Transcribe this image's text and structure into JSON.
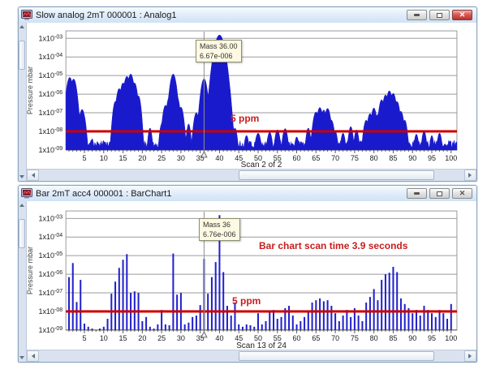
{
  "windows": [
    {
      "title": "Slow analog 2mT 000001 : Analog1",
      "active": true,
      "buttons": {
        "minimize": "minimize",
        "maximize": "maximize",
        "close": "close"
      }
    },
    {
      "title": "Bar 2mT acc4 000001 : BarChart1",
      "active": false,
      "buttons": {
        "minimize": "minimize",
        "maximize": "maximize",
        "close": "close"
      }
    }
  ],
  "icons": {
    "titlebar": "chart-window-icon",
    "minimize": "minimize-icon",
    "maximize": "maximize-icon",
    "close": "close-icon",
    "scroll_up": "triangle-up-icon",
    "scroll_down": "triangle-down-icon",
    "scroll_left": "triangle-left-icon",
    "scroll_right": "triangle-right-icon"
  },
  "chart_data": [
    {
      "type": "area",
      "title": "Slow analog 2mT 000001 : Analog1",
      "ylabel": "Pressure mbar",
      "xlabel": "Scan 2 of 2",
      "xlim": [
        0.2,
        101.5
      ],
      "ylim": [
        1e-09,
        0.0025
      ],
      "grid": "horizontal",
      "x_tick_step": 5,
      "x_ticks": [
        5,
        10,
        15,
        20,
        25,
        30,
        35,
        40,
        45,
        50,
        55,
        60,
        65,
        70,
        75,
        80,
        85,
        90,
        95,
        100
      ],
      "y_tick_labels": [
        "1x10-03",
        "1x10-04",
        "1x10-05",
        "1x10-06",
        "1x10-07",
        "1x10-08",
        "1x10-09"
      ],
      "trace_color": "#1a1acd",
      "threshold": {
        "value": 1e-08,
        "label": "5 ppm",
        "color": "#cc0000"
      },
      "cursor": {
        "mass": 36,
        "tooltip": [
          "Mass 36.00",
          "6.67e-006"
        ]
      },
      "noise_floor": 1.3e-09,
      "peaks": [
        [
          1.2,
          8e-06,
          0.5
        ],
        [
          2.2,
          6.5e-06,
          0.5
        ],
        [
          3.1,
          3e-07,
          0.35
        ],
        [
          4.4,
          1.5e-07,
          0.5
        ],
        [
          7,
          4e-09,
          0.3
        ],
        [
          13,
          4e-07,
          0.4
        ],
        [
          14,
          2e-06,
          0.45
        ],
        [
          15,
          4e-06,
          0.45
        ],
        [
          16,
          9e-06,
          0.5
        ],
        [
          17,
          1.2e-05,
          0.5
        ],
        [
          18,
          4e-06,
          0.45
        ],
        [
          19,
          8e-07,
          0.4
        ],
        [
          22,
          1.5e-08,
          0.35
        ],
        [
          25,
          2.5e-08,
          0.35
        ],
        [
          26,
          2.5e-07,
          0.45
        ],
        [
          27,
          7e-07,
          0.45
        ],
        [
          28,
          1.2e-05,
          0.5
        ],
        [
          29,
          7e-07,
          0.45
        ],
        [
          30,
          2e-07,
          0.45
        ],
        [
          32,
          2.5e-08,
          0.35
        ],
        [
          34,
          1e-07,
          0.45
        ],
        [
          36,
          6.7e-06,
          0.5
        ],
        [
          38,
          6e-07,
          0.45
        ],
        [
          39,
          4e-06,
          0.5
        ],
        [
          40,
          0.0015,
          0.75
        ],
        [
          41.3,
          6e-06,
          0.55
        ],
        [
          42.5,
          3e-07,
          0.45
        ],
        [
          44,
          1.5e-08,
          0.4
        ],
        [
          47,
          6e-09,
          0.4
        ],
        [
          50,
          8e-09,
          0.5
        ],
        [
          53,
          9e-09,
          0.45
        ],
        [
          55,
          1.2e-08,
          0.45
        ],
        [
          57,
          1.4e-08,
          0.45
        ],
        [
          60,
          5e-09,
          0.4
        ],
        [
          63,
          1.5e-08,
          0.4
        ],
        [
          65,
          1.1e-07,
          0.5
        ],
        [
          66,
          1.9e-07,
          0.5
        ],
        [
          67,
          1.4e-07,
          0.45
        ],
        [
          68,
          1.7e-07,
          0.5
        ],
        [
          69,
          4e-08,
          0.45
        ],
        [
          70,
          1e-08,
          0.4
        ],
        [
          72,
          8e-09,
          0.4
        ],
        [
          74,
          1.8e-08,
          0.4
        ],
        [
          75.5,
          1.2e-08,
          0.4
        ],
        [
          78,
          4e-08,
          0.45
        ],
        [
          79,
          9e-08,
          0.45
        ],
        [
          80,
          1.8e-07,
          0.45
        ],
        [
          81,
          8e-08,
          0.45
        ],
        [
          82,
          5e-07,
          0.45
        ],
        [
          83,
          9e-07,
          0.45
        ],
        [
          84,
          1.5e-06,
          0.5
        ],
        [
          85,
          1.1e-06,
          0.5
        ],
        [
          86,
          4e-07,
          0.45
        ],
        [
          87,
          1.2e-07,
          0.45
        ],
        [
          88,
          4e-08,
          0.4
        ],
        [
          91,
          7e-09,
          0.4
        ],
        [
          93,
          1e-08,
          0.4
        ],
        [
          95,
          6e-09,
          0.35
        ],
        [
          97,
          8e-09,
          0.4
        ]
      ]
    },
    {
      "type": "bar",
      "title": "Bar 2mT acc4 000001 : BarChart1",
      "ylabel": "Pressure mbar",
      "xlabel": "Scan 13 of 24",
      "xlim": [
        0.2,
        101.5
      ],
      "ylim": [
        1e-09,
        0.0025
      ],
      "grid": "horizontal",
      "x_tick_step": 5,
      "x_ticks": [
        5,
        10,
        15,
        20,
        25,
        30,
        35,
        40,
        45,
        50,
        55,
        60,
        65,
        70,
        75,
        80,
        85,
        90,
        95,
        100
      ],
      "y_tick_labels": [
        "1x10-03",
        "1x10-04",
        "1x10-05",
        "1x10-06",
        "1x10-07",
        "1x10-08",
        "1x10-09"
      ],
      "trace_color": "#2020cc",
      "threshold": {
        "value": 1e-08,
        "label": "5 ppm",
        "color": "#cc0000"
      },
      "cursor": {
        "mass": 36,
        "tooltip": [
          "Mass 36",
          "6.76e-006"
        ]
      },
      "annotation": "Bar chart scan time 3.9 seconds",
      "bars": {
        "masses_start": 1,
        "values": [
          7e-07,
          4e-06,
          3.2e-08,
          5e-07,
          2.2e-09,
          1.5e-09,
          1.2e-09,
          1e-09,
          1.2e-09,
          1.5e-09,
          4e-09,
          9e-08,
          4e-07,
          2.2e-06,
          6e-06,
          1.2e-05,
          1e-07,
          1.2e-07,
          1e-07,
          3e-09,
          5e-09,
          1.5e-09,
          1.2e-09,
          2e-09,
          1.2e-08,
          2e-09,
          1.8e-09,
          1.3e-05,
          8e-08,
          1e-07,
          2e-09,
          2.5e-09,
          5e-09,
          6e-09,
          2.2e-08,
          6.76e-06,
          9e-08,
          7e-07,
          4.5e-06,
          0.0015,
          1.3e-06,
          2e-08,
          6e-09,
          3e-08,
          2e-09,
          1.5e-09,
          2e-09,
          1.8e-09,
          1.5e-09,
          8e-09,
          2e-09,
          3e-09,
          1e-08,
          1.2e-08,
          4e-09,
          5e-09,
          1.5e-08,
          2e-08,
          6e-09,
          2e-09,
          3e-09,
          5e-09,
          1e-08,
          3e-08,
          4e-08,
          5e-08,
          3.5e-08,
          4e-08,
          2e-08,
          8e-09,
          3e-09,
          6e-09,
          1.2e-08,
          5e-09,
          1.5e-08,
          6e-09,
          3e-09,
          3e-08,
          6e-08,
          1.6e-07,
          4e-08,
          5e-07,
          1e-06,
          1.2e-06,
          2.5e-06,
          1.3e-06,
          5e-08,
          2.5e-08,
          1.5e-08,
          8e-09,
          1.2e-08,
          6e-09,
          2e-08,
          1.2e-08,
          8e-09,
          5e-09,
          1.2e-08,
          8e-09,
          4e-09,
          2.5e-08
        ]
      }
    }
  ]
}
